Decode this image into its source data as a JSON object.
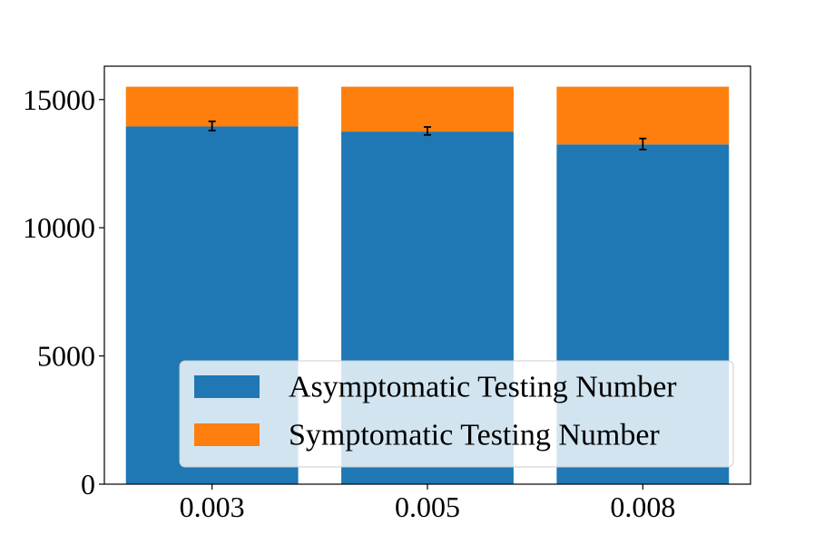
{
  "chart_data": {
    "type": "bar",
    "stacked": true,
    "categories": [
      "0.003",
      "0.005",
      "0.008"
    ],
    "series": [
      {
        "name": "Asymptomatic Testing Number",
        "color": "#1f77b4",
        "values": [
          13950,
          13750,
          13250
        ]
      },
      {
        "name": "Symptomatic Testing Number",
        "color": "#ff7f0e",
        "values": [
          1550,
          1750,
          2250
        ]
      }
    ],
    "error_bars": [
      {
        "center": 13950,
        "low": 13790,
        "high": 14150
      },
      {
        "center": 13750,
        "low": 13620,
        "high": 13930
      },
      {
        "center": 13250,
        "low": 13050,
        "high": 13480
      }
    ],
    "yticks": [
      "0",
      "5000",
      "10000",
      "15000"
    ],
    "ylim": [
      0,
      16300
    ],
    "ylabel": "",
    "xlabel": "",
    "title": "",
    "legend_position": "lower-right",
    "grid": false
  }
}
